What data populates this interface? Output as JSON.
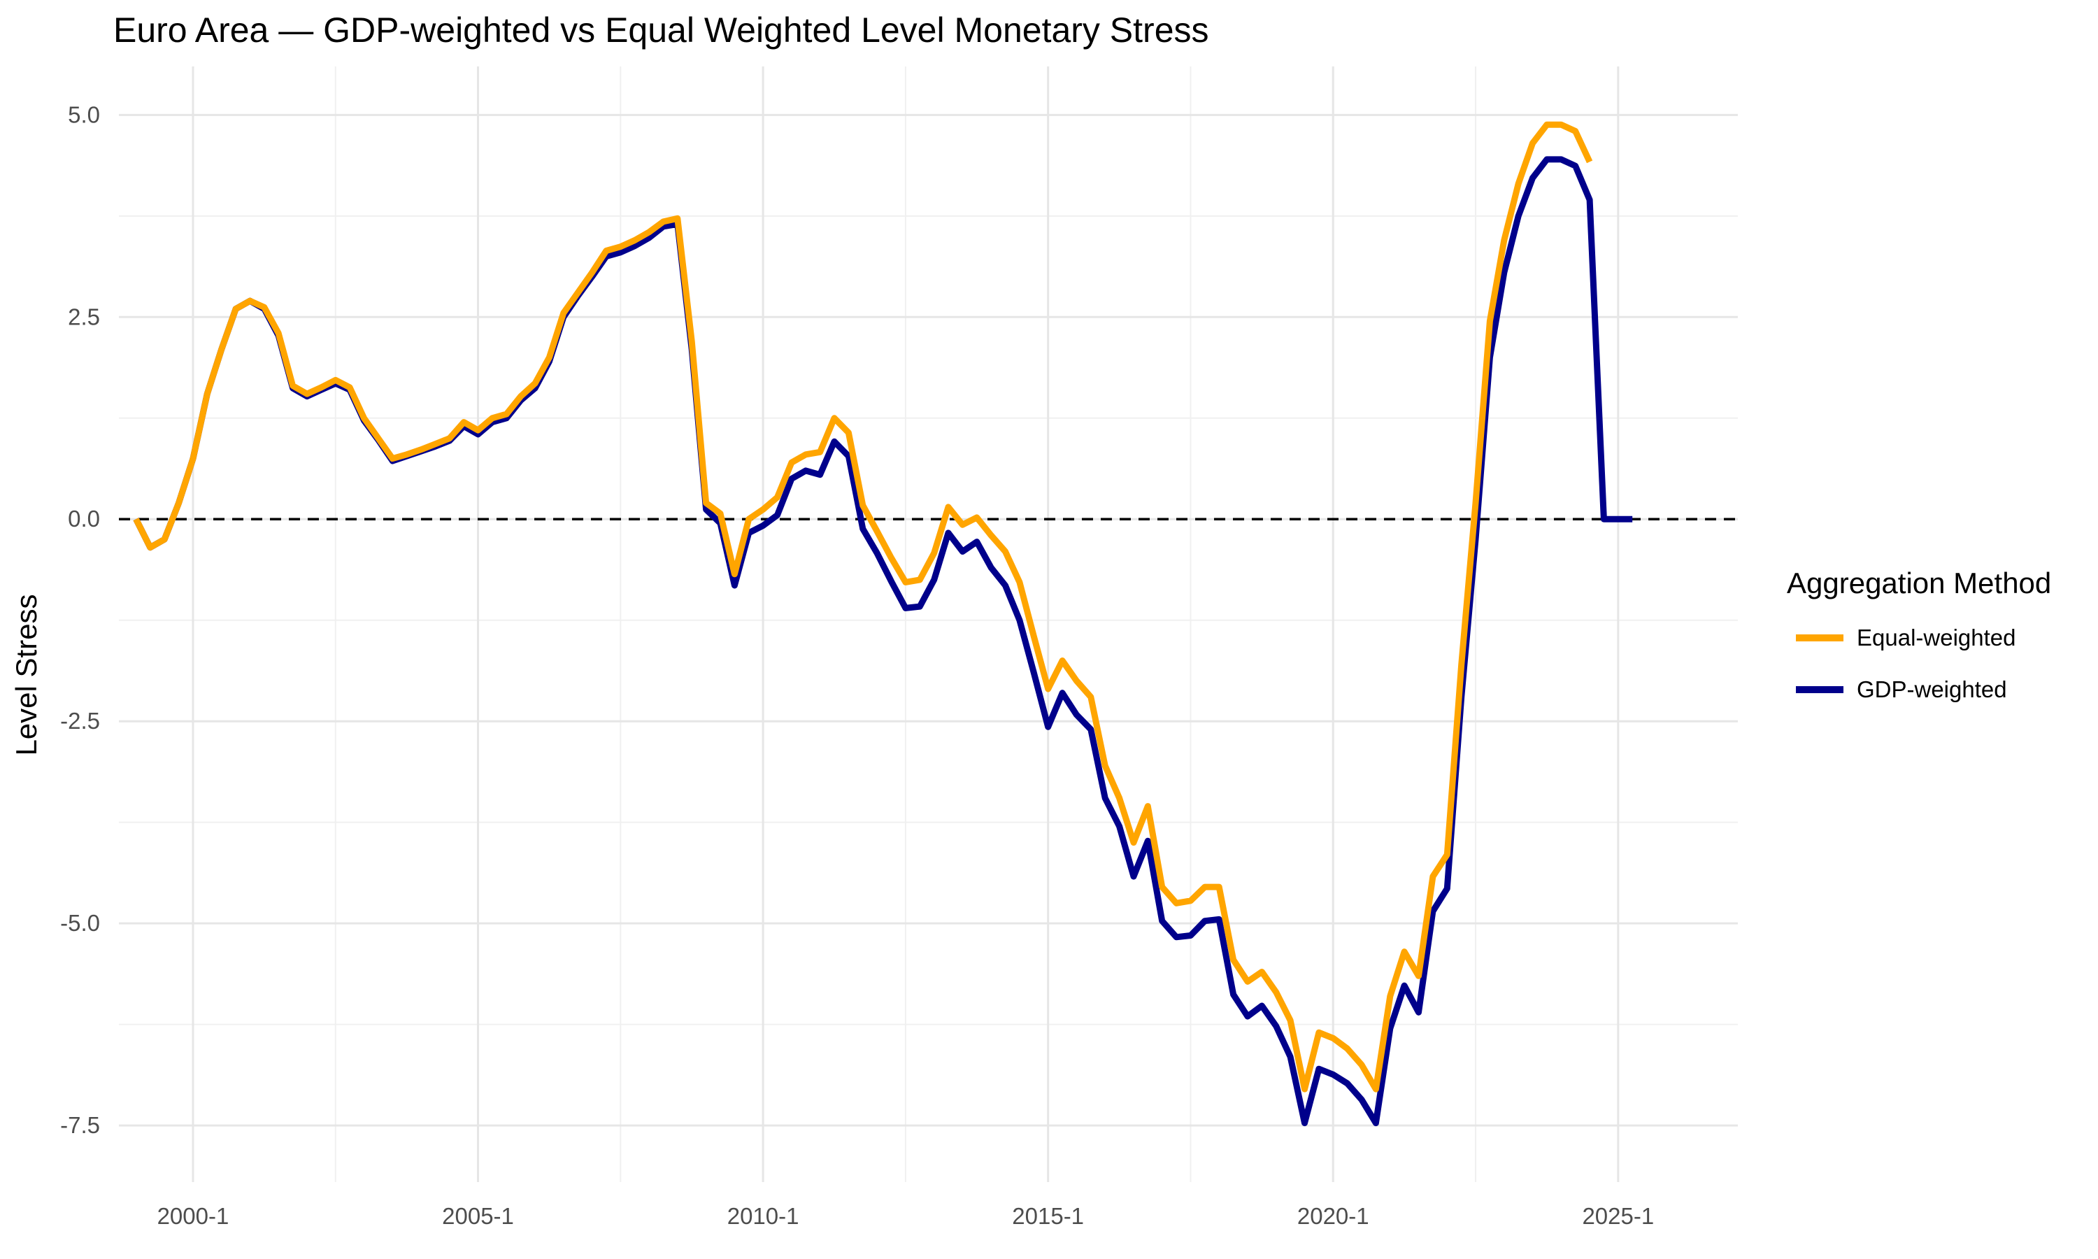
{
  "chart_data": {
    "type": "line",
    "title": "Euro Area — GDP-weighted vs Equal Weighted Level Monetary Stress",
    "xlabel": "",
    "ylabel": "Level Stress",
    "xlim": [
      1998.7,
      2027.1
    ],
    "ylim": [
      -8.2,
      5.6
    ],
    "x_ticks": [
      2000,
      2005,
      2010,
      2015,
      2020,
      2025
    ],
    "x_tick_labels": [
      "2000-1",
      "2005-1",
      "2010-1",
      "2015-1",
      "2020-1",
      "2025-1"
    ],
    "y_ticks": [
      5.0,
      2.5,
      0.0,
      -2.5,
      -5.0,
      -7.5
    ],
    "y_tick_labels": [
      "5.0",
      "2.5",
      "0.0",
      "-2.5",
      "-5.0",
      "-7.5"
    ],
    "grid": true,
    "reference_line": {
      "y": 0,
      "style": "dashed",
      "color": "#000000"
    },
    "legend": {
      "title": "Aggregation Method",
      "position": "right"
    },
    "series": [
      {
        "name": "Equal-weighted",
        "color": "#FFA500",
        "points": [
          [
            1999.0,
            0.0
          ],
          [
            1999.25,
            -0.35
          ],
          [
            1999.5,
            -0.25
          ],
          [
            1999.75,
            0.2
          ],
          [
            2000.0,
            0.75
          ],
          [
            2000.25,
            1.55
          ],
          [
            2000.5,
            2.1
          ],
          [
            2000.75,
            2.6
          ],
          [
            2001.0,
            2.7
          ],
          [
            2001.25,
            2.62
          ],
          [
            2001.5,
            2.3
          ],
          [
            2001.75,
            1.65
          ],
          [
            2002.0,
            1.55
          ],
          [
            2002.25,
            1.63
          ],
          [
            2002.5,
            1.72
          ],
          [
            2002.75,
            1.63
          ],
          [
            2003.0,
            1.25
          ],
          [
            2003.25,
            1.0
          ],
          [
            2003.5,
            0.75
          ],
          [
            2003.75,
            0.8
          ],
          [
            2004.0,
            0.86
          ],
          [
            2004.25,
            0.93
          ],
          [
            2004.5,
            1.0
          ],
          [
            2004.75,
            1.2
          ],
          [
            2005.0,
            1.1
          ],
          [
            2005.25,
            1.25
          ],
          [
            2005.5,
            1.3
          ],
          [
            2005.75,
            1.52
          ],
          [
            2006.0,
            1.68
          ],
          [
            2006.25,
            2.0
          ],
          [
            2006.5,
            2.55
          ],
          [
            2006.75,
            2.8
          ],
          [
            2007.0,
            3.05
          ],
          [
            2007.25,
            3.32
          ],
          [
            2007.5,
            3.37
          ],
          [
            2007.75,
            3.45
          ],
          [
            2008.0,
            3.55
          ],
          [
            2008.25,
            3.68
          ],
          [
            2008.5,
            3.72
          ],
          [
            2008.75,
            2.2
          ],
          [
            2009.0,
            0.2
          ],
          [
            2009.25,
            0.07
          ],
          [
            2009.5,
            -0.68
          ],
          [
            2009.75,
            0.0
          ],
          [
            2010.0,
            0.12
          ],
          [
            2010.25,
            0.27
          ],
          [
            2010.5,
            0.7
          ],
          [
            2010.75,
            0.8
          ],
          [
            2011.0,
            0.83
          ],
          [
            2011.25,
            1.25
          ],
          [
            2011.5,
            1.07
          ],
          [
            2011.75,
            0.17
          ],
          [
            2012.0,
            -0.15
          ],
          [
            2012.25,
            -0.48
          ],
          [
            2012.5,
            -0.78
          ],
          [
            2012.75,
            -0.75
          ],
          [
            2013.0,
            -0.42
          ],
          [
            2013.25,
            0.15
          ],
          [
            2013.5,
            -0.07
          ],
          [
            2013.75,
            0.02
          ],
          [
            2014.0,
            -0.2
          ],
          [
            2014.25,
            -0.4
          ],
          [
            2014.5,
            -0.78
          ],
          [
            2014.75,
            -1.45
          ],
          [
            2015.0,
            -2.1
          ],
          [
            2015.25,
            -1.75
          ],
          [
            2015.5,
            -2.0
          ],
          [
            2015.75,
            -2.2
          ],
          [
            2016.0,
            -3.05
          ],
          [
            2016.25,
            -3.45
          ],
          [
            2016.5,
            -4.0
          ],
          [
            2016.75,
            -3.55
          ],
          [
            2017.0,
            -4.55
          ],
          [
            2017.25,
            -4.75
          ],
          [
            2017.5,
            -4.72
          ],
          [
            2017.75,
            -4.55
          ],
          [
            2018.0,
            -4.55
          ],
          [
            2018.25,
            -5.45
          ],
          [
            2018.5,
            -5.72
          ],
          [
            2018.75,
            -5.6
          ],
          [
            2019.0,
            -5.85
          ],
          [
            2019.25,
            -6.2
          ],
          [
            2019.5,
            -7.05
          ],
          [
            2019.75,
            -6.35
          ],
          [
            2020.0,
            -6.42
          ],
          [
            2020.25,
            -6.55
          ],
          [
            2020.5,
            -6.75
          ],
          [
            2020.75,
            -7.05
          ],
          [
            2021.0,
            -5.9
          ],
          [
            2021.25,
            -5.35
          ],
          [
            2021.5,
            -5.65
          ],
          [
            2021.75,
            -4.42
          ],
          [
            2022.0,
            -4.15
          ],
          [
            2022.25,
            -1.8
          ],
          [
            2022.5,
            0.2
          ],
          [
            2022.75,
            2.45
          ],
          [
            2023.0,
            3.45
          ],
          [
            2023.25,
            4.15
          ],
          [
            2023.5,
            4.65
          ],
          [
            2023.75,
            4.88
          ],
          [
            2024.0,
            4.88
          ],
          [
            2024.25,
            4.8
          ],
          [
            2024.5,
            4.42
          ]
        ]
      },
      {
        "name": "GDP-weighted",
        "color": "#00008B",
        "points": [
          [
            1999.0,
            0.0
          ],
          [
            1999.25,
            -0.35
          ],
          [
            1999.5,
            -0.25
          ],
          [
            1999.75,
            0.2
          ],
          [
            2000.0,
            0.75
          ],
          [
            2000.25,
            1.55
          ],
          [
            2000.5,
            2.1
          ],
          [
            2000.75,
            2.6
          ],
          [
            2001.0,
            2.7
          ],
          [
            2001.25,
            2.6
          ],
          [
            2001.5,
            2.27
          ],
          [
            2001.75,
            1.62
          ],
          [
            2002.0,
            1.52
          ],
          [
            2002.25,
            1.6
          ],
          [
            2002.5,
            1.68
          ],
          [
            2002.75,
            1.6
          ],
          [
            2003.0,
            1.22
          ],
          [
            2003.25,
            0.98
          ],
          [
            2003.5,
            0.72
          ],
          [
            2003.75,
            0.78
          ],
          [
            2004.0,
            0.84
          ],
          [
            2004.25,
            0.9
          ],
          [
            2004.5,
            0.97
          ],
          [
            2004.75,
            1.15
          ],
          [
            2005.0,
            1.05
          ],
          [
            2005.25,
            1.2
          ],
          [
            2005.5,
            1.25
          ],
          [
            2005.75,
            1.47
          ],
          [
            2006.0,
            1.62
          ],
          [
            2006.25,
            1.95
          ],
          [
            2006.5,
            2.5
          ],
          [
            2006.75,
            2.76
          ],
          [
            2007.0,
            3.0
          ],
          [
            2007.25,
            3.25
          ],
          [
            2007.5,
            3.3
          ],
          [
            2007.75,
            3.38
          ],
          [
            2008.0,
            3.48
          ],
          [
            2008.25,
            3.62
          ],
          [
            2008.5,
            3.65
          ],
          [
            2008.75,
            2.1
          ],
          [
            2009.0,
            0.12
          ],
          [
            2009.25,
            -0.05
          ],
          [
            2009.5,
            -0.82
          ],
          [
            2009.75,
            -0.17
          ],
          [
            2010.0,
            -0.08
          ],
          [
            2010.25,
            0.05
          ],
          [
            2010.5,
            0.5
          ],
          [
            2010.75,
            0.6
          ],
          [
            2011.0,
            0.55
          ],
          [
            2011.25,
            0.96
          ],
          [
            2011.5,
            0.78
          ],
          [
            2011.75,
            -0.12
          ],
          [
            2012.0,
            -0.42
          ],
          [
            2012.25,
            -0.77
          ],
          [
            2012.5,
            -1.1
          ],
          [
            2012.75,
            -1.08
          ],
          [
            2013.0,
            -0.75
          ],
          [
            2013.25,
            -0.17
          ],
          [
            2013.5,
            -0.4
          ],
          [
            2013.75,
            -0.28
          ],
          [
            2014.0,
            -0.6
          ],
          [
            2014.25,
            -0.82
          ],
          [
            2014.5,
            -1.25
          ],
          [
            2014.75,
            -1.9
          ],
          [
            2015.0,
            -2.57
          ],
          [
            2015.25,
            -2.15
          ],
          [
            2015.5,
            -2.42
          ],
          [
            2015.75,
            -2.6
          ],
          [
            2016.0,
            -3.45
          ],
          [
            2016.25,
            -3.8
          ],
          [
            2016.5,
            -4.42
          ],
          [
            2016.75,
            -3.98
          ],
          [
            2017.0,
            -4.97
          ],
          [
            2017.25,
            -5.17
          ],
          [
            2017.5,
            -5.15
          ],
          [
            2017.75,
            -4.97
          ],
          [
            2018.0,
            -4.95
          ],
          [
            2018.25,
            -5.88
          ],
          [
            2018.5,
            -6.15
          ],
          [
            2018.75,
            -6.02
          ],
          [
            2019.0,
            -6.27
          ],
          [
            2019.25,
            -6.65
          ],
          [
            2019.5,
            -7.47
          ],
          [
            2019.75,
            -6.8
          ],
          [
            2020.0,
            -6.87
          ],
          [
            2020.25,
            -6.98
          ],
          [
            2020.5,
            -7.18
          ],
          [
            2020.75,
            -7.47
          ],
          [
            2021.0,
            -6.3
          ],
          [
            2021.25,
            -5.77
          ],
          [
            2021.5,
            -6.1
          ],
          [
            2021.75,
            -4.85
          ],
          [
            2022.0,
            -4.57
          ],
          [
            2022.25,
            -2.2
          ],
          [
            2022.5,
            -0.25
          ],
          [
            2022.75,
            2.0
          ],
          [
            2023.0,
            3.05
          ],
          [
            2023.25,
            3.75
          ],
          [
            2023.5,
            4.22
          ],
          [
            2023.75,
            4.45
          ],
          [
            2024.0,
            4.45
          ],
          [
            2024.25,
            4.37
          ],
          [
            2024.5,
            3.95
          ],
          [
            2024.75,
            0.0
          ],
          [
            2025.0,
            0.0
          ],
          [
            2025.25,
            0.0
          ]
        ]
      }
    ]
  }
}
